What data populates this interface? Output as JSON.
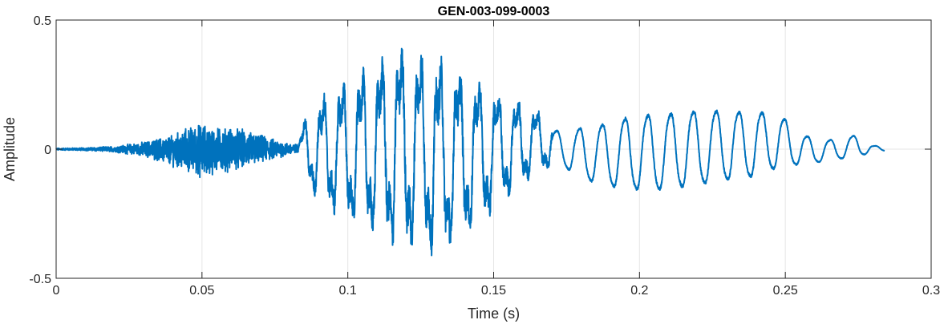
{
  "chart_data": {
    "type": "line",
    "title": "GEN-003-099-0003",
    "xlabel": "Time (s)",
    "ylabel": "Amplitude",
    "xlim": [
      0,
      0.3
    ],
    "ylim": [
      -0.5,
      0.5
    ],
    "grid": true,
    "legend": "none",
    "xticks": [
      0,
      0.05,
      0.1,
      0.15,
      0.2,
      0.25,
      0.3
    ],
    "xtick_labels": [
      "0",
      "0.05",
      "0.1",
      "0.15",
      "0.2",
      "0.25",
      "0.3"
    ],
    "yticks": [
      -0.5,
      0,
      0.5
    ],
    "ytick_labels": [
      "-0.5",
      "0",
      "0.5"
    ],
    "line_color": "#0072BD",
    "series": [
      {
        "envelope": {
          "t": [
            0,
            0.01,
            0.02,
            0.03,
            0.04,
            0.045,
            0.05,
            0.055,
            0.06,
            0.065,
            0.07,
            0.075,
            0.08,
            0.083,
            0.085,
            0.09,
            0.095,
            0.1,
            0.105,
            0.11,
            0.115,
            0.12,
            0.125,
            0.13,
            0.135,
            0.14,
            0.145,
            0.15,
            0.155,
            0.16,
            0.165,
            0.17,
            0.175,
            0.18,
            0.185,
            0.19,
            0.195,
            0.2,
            0.205,
            0.21,
            0.215,
            0.22,
            0.225,
            0.23,
            0.235,
            0.24,
            0.245,
            0.25,
            0.255,
            0.26,
            0.265,
            0.27,
            0.275,
            0.28,
            0.284
          ],
          "upper": [
            0.004,
            0.006,
            0.012,
            0.03,
            0.06,
            0.09,
            0.11,
            0.09,
            0.09,
            0.08,
            0.06,
            0.04,
            0.025,
            0.02,
            0.12,
            0.2,
            0.26,
            0.28,
            0.32,
            0.36,
            0.4,
            0.43,
            0.4,
            0.37,
            0.37,
            0.3,
            0.28,
            0.25,
            0.22,
            0.19,
            0.16,
            0.1,
            0.09,
            0.12,
            0.13,
            0.15,
            0.17,
            0.18,
            0.19,
            0.19,
            0.2,
            0.2,
            0.2,
            0.2,
            0.19,
            0.19,
            0.18,
            0.15,
            0.08,
            0.06,
            0.05,
            0.06,
            0.07,
            0.02,
            0.01
          ],
          "lower": [
            -0.004,
            -0.006,
            -0.012,
            -0.03,
            -0.07,
            -0.1,
            -0.12,
            -0.1,
            -0.09,
            -0.08,
            -0.06,
            -0.04,
            -0.025,
            -0.02,
            -0.1,
            -0.23,
            -0.26,
            -0.3,
            -0.33,
            -0.36,
            -0.4,
            -0.43,
            -0.4,
            -0.43,
            -0.42,
            -0.36,
            -0.31,
            -0.26,
            -0.2,
            -0.15,
            -0.1,
            -0.08,
            -0.1,
            -0.15,
            -0.17,
            -0.19,
            -0.2,
            -0.21,
            -0.21,
            -0.21,
            -0.2,
            -0.19,
            -0.18,
            -0.17,
            -0.16,
            -0.15,
            -0.12,
            -0.1,
            -0.08,
            -0.07,
            -0.06,
            -0.05,
            -0.04,
            -0.02,
            -0.01
          ]
        }
      }
    ]
  }
}
